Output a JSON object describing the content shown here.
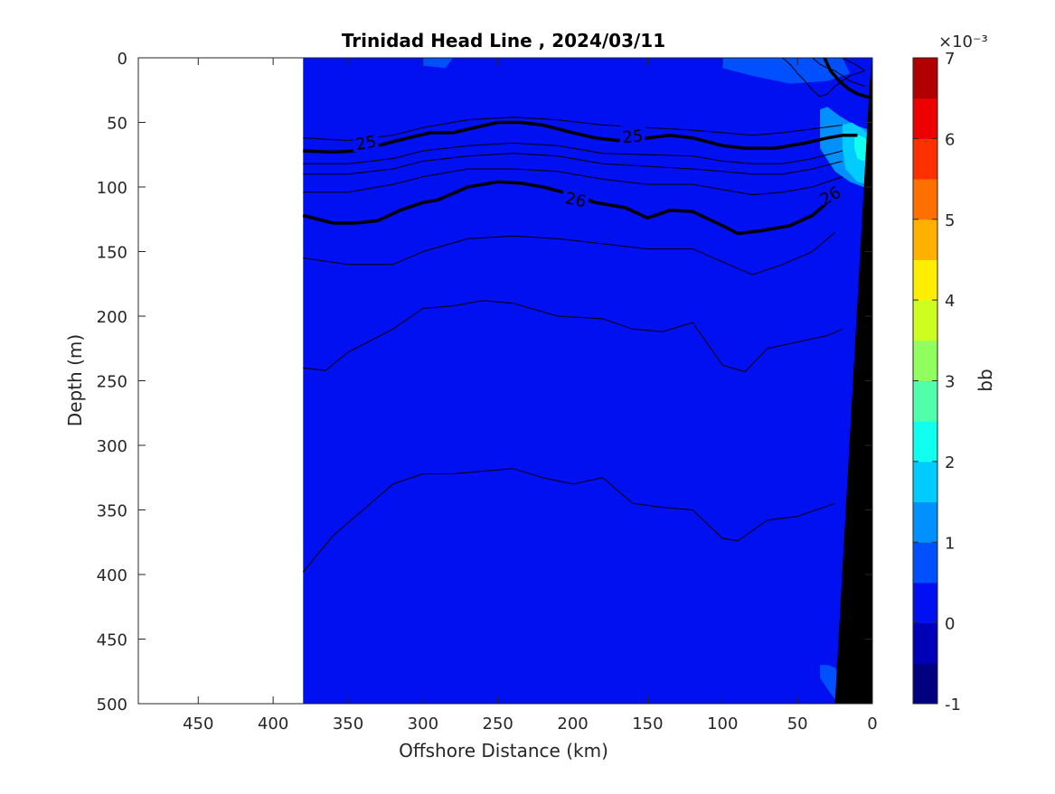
{
  "chart_data": {
    "type": "contourf",
    "title": "Trinidad Head Line , 2024/03/11",
    "xlabel": "Offshore Distance (km)",
    "ylabel": "Depth (m)",
    "xlim": [
      490,
      0
    ],
    "ylim": [
      0,
      500
    ],
    "x_reversed": true,
    "y_reversed": true,
    "x_ticks": [
      450,
      400,
      350,
      300,
      250,
      200,
      150,
      100,
      50,
      0
    ],
    "y_ticks": [
      0,
      50,
      100,
      150,
      200,
      250,
      300,
      350,
      400,
      450,
      500
    ],
    "data_extent_km": [
      380,
      0
    ],
    "background_fill_value_bb": 0.25,
    "colorbar": {
      "label": "bb",
      "exponent": "×10⁻³",
      "range": [
        -1,
        7
      ],
      "ticks": [
        -1,
        0,
        1,
        2,
        3,
        4,
        5,
        6,
        7
      ],
      "step": 0.5,
      "colors": [
        "#000080",
        "#0000b8",
        "#0010f0",
        "#0050ff",
        "#0090ff",
        "#00ccff",
        "#10ffee",
        "#50ffaa",
        "#90ff60",
        "#ccff20",
        "#ffee00",
        "#ffb000",
        "#ff7000",
        "#ff3000",
        "#ee0000",
        "#b00000"
      ]
    },
    "patches": [
      {
        "value_bb": 0.75,
        "region": "surface 0-10 m near 290 km"
      },
      {
        "value_bb": 0.75,
        "region": "surface 0-20 m, 0-100 km"
      },
      {
        "value_bb": 1.25,
        "region": "nearshore 40-80 m, 0-35 km"
      },
      {
        "value_bb": 1.75,
        "region": "nearshore 50-100 m, 0-20 km"
      },
      {
        "value_bb": 2.25,
        "region": "nearshore 60-80 m, 0-12 km"
      },
      {
        "value_bb": 0.75,
        "region": "nearshore bottom 470-500 m, 20-35 km"
      }
    ],
    "contour_series": [
      {
        "label": "25",
        "bold": true,
        "x": [
          380,
          360,
          345,
          330,
          310,
          295,
          280,
          265,
          250,
          235,
          220,
          200,
          185,
          170,
          150,
          135,
          120,
          100,
          85,
          65,
          45,
          30,
          20,
          10
        ],
        "y": [
          72,
          73,
          72,
          68,
          62,
          58,
          58,
          54,
          50,
          50,
          52,
          58,
          62,
          64,
          62,
          60,
          62,
          68,
          70,
          70,
          66,
          62,
          60,
          60
        ]
      },
      {
        "label": "26",
        "bold": true,
        "x": [
          380,
          360,
          345,
          330,
          315,
          300,
          290,
          270,
          250,
          235,
          220,
          200,
          185,
          165,
          150,
          135,
          120,
          100,
          90,
          75,
          55,
          40,
          30,
          20
        ],
        "y": [
          122,
          128,
          128,
          126,
          118,
          112,
          110,
          100,
          96,
          97,
          100,
          106,
          112,
          116,
          124,
          118,
          119,
          130,
          136,
          134,
          130,
          122,
          112,
          100
        ]
      },
      {
        "label": "",
        "bold": false,
        "x": [
          380,
          350,
          320,
          300,
          270,
          240,
          210,
          180,
          150,
          120,
          100,
          80,
          60,
          40,
          20
        ],
        "y": [
          62,
          64,
          60,
          54,
          48,
          46,
          48,
          52,
          54,
          56,
          58,
          60,
          58,
          55,
          52
        ]
      },
      {
        "label": "",
        "bold": false,
        "x": [
          380,
          350,
          320,
          300,
          270,
          240,
          210,
          180,
          150,
          120,
          100,
          80,
          60,
          40,
          20
        ],
        "y": [
          82,
          82,
          78,
          72,
          68,
          66,
          68,
          74,
          75,
          76,
          80,
          82,
          82,
          78,
          72
        ]
      },
      {
        "label": "",
        "bold": false,
        "x": [
          380,
          350,
          320,
          300,
          270,
          240,
          210,
          180,
          150,
          120,
          100,
          80,
          60,
          40,
          20
        ],
        "y": [
          90,
          90,
          86,
          80,
          76,
          74,
          76,
          82,
          84,
          86,
          88,
          90,
          90,
          86,
          80
        ]
      },
      {
        "label": "",
        "bold": false,
        "x": [
          380,
          350,
          320,
          300,
          270,
          240,
          210,
          180,
          150,
          120,
          100,
          80,
          60,
          40,
          20
        ],
        "y": [
          104,
          104,
          98,
          92,
          86,
          86,
          88,
          94,
          98,
          98,
          102,
          106,
          104,
          100,
          92
        ]
      },
      {
        "label": "",
        "bold": false,
        "x": [
          380,
          350,
          320,
          300,
          270,
          240,
          210,
          180,
          150,
          120,
          100,
          80,
          60,
          40,
          25
        ],
        "y": [
          155,
          160,
          160,
          150,
          140,
          138,
          140,
          144,
          148,
          148,
          158,
          168,
          160,
          150,
          135
        ]
      },
      {
        "label": "",
        "bold": false,
        "x": [
          380,
          365,
          350,
          320,
          300,
          280,
          260,
          240,
          210,
          180,
          160,
          140,
          120,
          100,
          85,
          70,
          50,
          30,
          20
        ],
        "y": [
          240,
          242,
          228,
          210,
          194,
          192,
          188,
          190,
          200,
          202,
          210,
          212,
          205,
          238,
          243,
          225,
          220,
          215,
          210
        ]
      },
      {
        "label": "",
        "bold": false,
        "x": [
          380,
          360,
          340,
          320,
          300,
          280,
          260,
          240,
          220,
          200,
          180,
          160,
          140,
          120,
          100,
          90,
          70,
          50,
          25
        ],
        "y": [
          398,
          370,
          350,
          330,
          322,
          322,
          320,
          318,
          325,
          330,
          325,
          345,
          348,
          350,
          372,
          374,
          358,
          355,
          345
        ]
      }
    ],
    "thin_surface_contours": [
      {
        "x": [
          60,
          55,
          50,
          45,
          40,
          35,
          30,
          25,
          20,
          15,
          10,
          5
        ],
        "y": [
          0,
          5,
          12,
          18,
          25,
          30,
          28,
          22,
          18,
          14,
          12,
          10
        ]
      },
      {
        "x": [
          40,
          35,
          30,
          25,
          20,
          15,
          10,
          5
        ],
        "y": [
          0,
          5,
          8,
          10,
          14,
          18,
          20,
          22
        ]
      },
      {
        "x": [
          20,
          15,
          10,
          5
        ],
        "y": [
          0,
          3,
          6,
          10
        ]
      }
    ],
    "bold_surface_contour": {
      "x": [
        32,
        28,
        22,
        16,
        10,
        4,
        0
      ],
      "y": [
        0,
        10,
        18,
        24,
        28,
        30,
        31
      ]
    },
    "bathymetry_boundary": {
      "x": [
        0,
        0,
        25,
        22,
        18
      ],
      "y": [
        0,
        500,
        500,
        460,
        400
      ]
    }
  }
}
